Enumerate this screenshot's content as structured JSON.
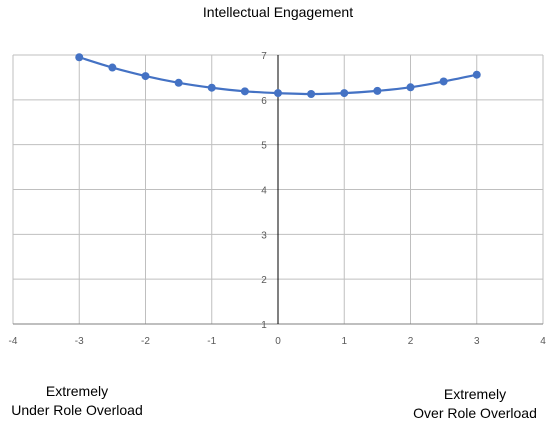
{
  "chart_data": {
    "type": "scatter",
    "title": "Intellectual Engagement",
    "xlabel": "",
    "ylabel": "",
    "xlim": [
      -4,
      4
    ],
    "ylim": [
      1,
      7
    ],
    "xticks": [
      "-4",
      "-3",
      "-2",
      "-1",
      "0",
      "1",
      "2",
      "3",
      "4"
    ],
    "yticks": [
      "1",
      "2",
      "3",
      "4",
      "5",
      "6",
      "7"
    ],
    "grid": true,
    "legend": "none",
    "line_color": "#4472C4",
    "smooth": true,
    "series": [
      {
        "x": [
          -3,
          -2.5,
          -2,
          -1.5,
          -1,
          -0.5,
          0,
          0.5,
          1,
          1.5,
          2,
          2.5,
          3
        ],
        "y": [
          6.95,
          6.72,
          6.53,
          6.38,
          6.27,
          6.19,
          6.15,
          6.13,
          6.15,
          6.2,
          6.28,
          6.41,
          6.56
        ]
      }
    ]
  },
  "annotations": {
    "left_line1": "Extremely",
    "left_line2": "Under Role Overload",
    "right_line1": "Extremely",
    "right_line2": "Over Role Overload"
  }
}
